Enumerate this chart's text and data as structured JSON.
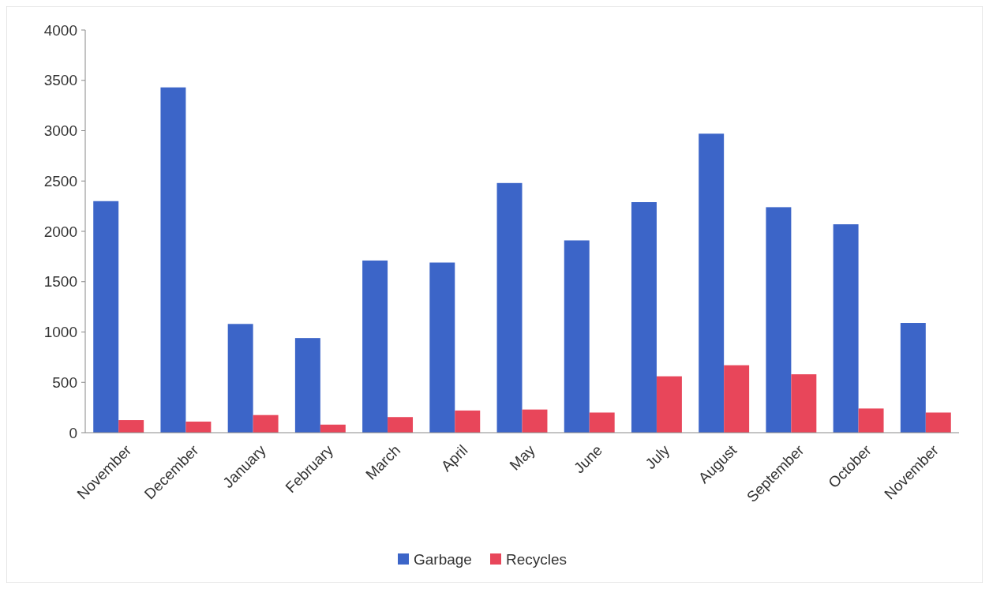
{
  "chart_data": {
    "type": "bar",
    "categories": [
      "November",
      "December",
      "January",
      "February",
      "March",
      "April",
      "May",
      "June",
      "July",
      "August",
      "September",
      "October",
      "November"
    ],
    "series": [
      {
        "name": "Garbage",
        "color": "#3c65c8",
        "values": [
          2300,
          3430,
          1080,
          940,
          1710,
          1690,
          2480,
          1910,
          2290,
          2970,
          2240,
          2070,
          1090
        ]
      },
      {
        "name": "Recycles",
        "color": "#e8465a",
        "values": [
          125,
          110,
          175,
          80,
          155,
          220,
          230,
          200,
          560,
          670,
          580,
          240,
          200
        ]
      }
    ],
    "ylim": [
      0,
      4000
    ],
    "yticks": [
      0,
      500,
      1000,
      1500,
      2000,
      2500,
      3000,
      3500,
      4000
    ],
    "legend": "bottom"
  }
}
